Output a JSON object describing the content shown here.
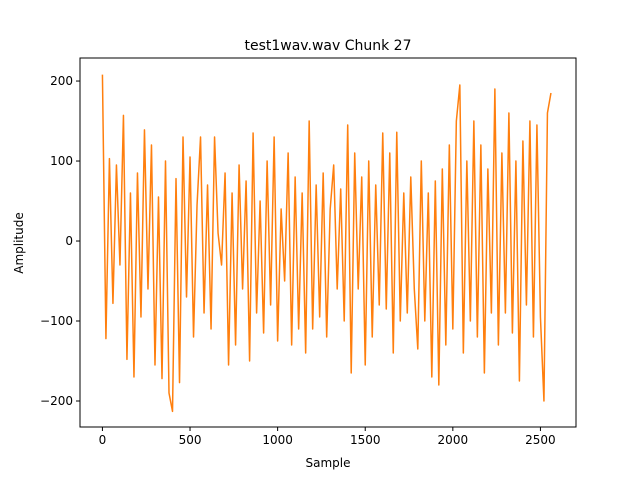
{
  "chart_data": {
    "type": "line",
    "title": "test1wav.wav Chunk 27",
    "xlabel": "Sample",
    "ylabel": "Amplitude",
    "color": "#ff7f0e",
    "x": [
      0,
      20,
      40,
      60,
      80,
      100,
      120,
      140,
      160,
      180,
      200,
      220,
      240,
      260,
      280,
      300,
      320,
      340,
      360,
      380,
      400,
      420,
      440,
      460,
      480,
      500,
      520,
      540,
      560,
      580,
      600,
      620,
      640,
      660,
      680,
      700,
      720,
      740,
      760,
      780,
      800,
      820,
      840,
      860,
      880,
      900,
      920,
      940,
      960,
      980,
      1000,
      1020,
      1040,
      1060,
      1080,
      1100,
      1120,
      1140,
      1160,
      1180,
      1200,
      1220,
      1240,
      1260,
      1280,
      1300,
      1320,
      1340,
      1360,
      1380,
      1400,
      1420,
      1440,
      1460,
      1480,
      1500,
      1520,
      1540,
      1560,
      1580,
      1600,
      1620,
      1640,
      1660,
      1680,
      1700,
      1720,
      1740,
      1760,
      1780,
      1800,
      1820,
      1840,
      1860,
      1880,
      1900,
      1920,
      1940,
      1960,
      1980,
      2000,
      2020,
      2040,
      2060,
      2080,
      2100,
      2120,
      2140,
      2160,
      2180,
      2200,
      2220,
      2240,
      2260,
      2280,
      2300,
      2320,
      2340,
      2360,
      2380,
      2400,
      2420,
      2440,
      2460,
      2480,
      2500,
      2520,
      2540,
      2560
    ],
    "values": [
      208,
      -122,
      103,
      -78,
      95,
      -30,
      157,
      -148,
      60,
      -170,
      85,
      -95,
      139,
      -60,
      120,
      -155,
      55,
      -172,
      100,
      -190,
      -213,
      78,
      -177,
      130,
      -70,
      105,
      -120,
      45,
      130,
      -90,
      70,
      -110,
      130,
      10,
      -30,
      85,
      -155,
      60,
      -130,
      95,
      -60,
      75,
      -150,
      135,
      -90,
      50,
      -115,
      100,
      -80,
      130,
      -125,
      40,
      -50,
      110,
      -130,
      80,
      -110,
      60,
      -140,
      150,
      -110,
      70,
      -95,
      85,
      -120,
      40,
      95,
      -60,
      65,
      -100,
      145,
      -165,
      110,
      -60,
      80,
      -155,
      100,
      -120,
      70,
      -80,
      135,
      -85,
      110,
      -140,
      136,
      -100,
      60,
      -90,
      80,
      -60,
      -135,
      100,
      -100,
      60,
      -170,
      75,
      -180,
      90,
      -130,
      120,
      -110,
      150,
      195,
      -140,
      100,
      -100,
      150,
      -120,
      120,
      -165,
      90,
      -90,
      190,
      -130,
      110,
      -90,
      160,
      -115,
      100,
      -175,
      125,
      -80,
      150,
      -120,
      145,
      -95,
      -200,
      160,
      185
    ],
    "xlim": [
      -128,
      2703
    ],
    "ylim": [
      -232.5,
      228.8
    ],
    "xticks": [
      0,
      500,
      1000,
      1500,
      2000,
      2500
    ],
    "yticks": [
      {
        "value": -200,
        "label": "−200"
      },
      {
        "value": -100,
        "label": "−100"
      },
      0,
      100,
      200
    ]
  }
}
